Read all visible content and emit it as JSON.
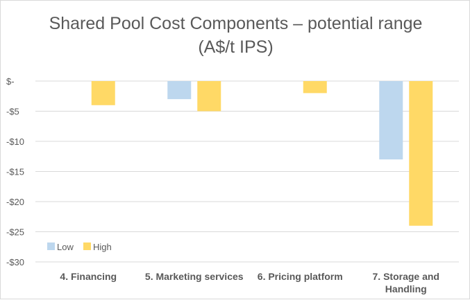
{
  "chart_data": {
    "type": "bar",
    "title": [
      "Shared Pool Cost Components – potential range",
      "(A$/t IPS)"
    ],
    "categories": [
      [
        "4. Financing"
      ],
      [
        "5. Marketing services"
      ],
      [
        "6. Pricing platform"
      ],
      [
        "7. Storage and",
        "Handling"
      ]
    ],
    "series": [
      {
        "name": "Low",
        "values": [
          0,
          -3,
          0,
          -13
        ],
        "color": "#bdd7ee"
      },
      {
        "name": "High",
        "values": [
          -4,
          -5,
          -2,
          -24
        ],
        "color": "#ffd966"
      }
    ],
    "ylim": [
      -30,
      0
    ],
    "yticks": [
      0,
      -5,
      -10,
      -15,
      -20,
      -25,
      -30
    ],
    "ytick_labels": [
      "$-",
      "-$5",
      "-$10",
      "-$15",
      "-$20",
      "-$25",
      "-$30"
    ],
    "grid": true,
    "legend_position": "bottom-left",
    "colors": {
      "grid": "#d9d9d9",
      "text": "#595959"
    }
  }
}
